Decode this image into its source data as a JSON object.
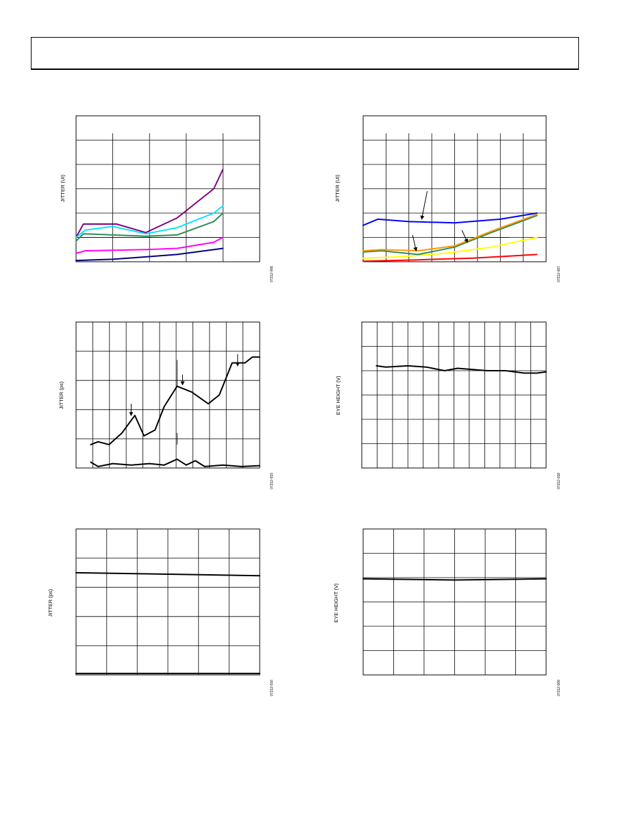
{
  "charts": [
    {
      "id": "c1",
      "type": "line",
      "ylabel": "JITTER (UI)",
      "figure_id": "07212-006",
      "xlim": [
        0,
        1
      ],
      "ylim": [
        0,
        6
      ],
      "v_ticks": [
        0.2,
        0.4,
        0.6,
        0.8
      ],
      "h_ticks": [
        1,
        2,
        3,
        4,
        5
      ],
      "series": [
        {
          "color": "#800080",
          "values": [
            [
              0,
              1.0
            ],
            [
              0.04,
              1.55
            ],
            [
              0.12,
              1.55
            ],
            [
              0.22,
              1.55
            ],
            [
              0.38,
              1.2
            ],
            [
              0.55,
              1.8
            ],
            [
              0.75,
              3.0
            ],
            [
              0.8,
              3.8
            ]
          ]
        },
        {
          "color": "#00e5ff",
          "values": [
            [
              0,
              1.0
            ],
            [
              0.05,
              1.3
            ],
            [
              0.2,
              1.45
            ],
            [
              0.38,
              1.15
            ],
            [
              0.55,
              1.4
            ],
            [
              0.75,
              2.0
            ],
            [
              0.8,
              2.3
            ]
          ]
        },
        {
          "color": "#2e8b57",
          "values": [
            [
              0,
              0.85
            ],
            [
              0.04,
              1.15
            ],
            [
              0.2,
              1.1
            ],
            [
              0.38,
              1.05
            ],
            [
              0.55,
              1.1
            ],
            [
              0.75,
              1.65
            ],
            [
              0.8,
              2.0
            ]
          ]
        },
        {
          "color": "#ff00ff",
          "values": [
            [
              0,
              0.35
            ],
            [
              0.05,
              0.45
            ],
            [
              0.38,
              0.5
            ],
            [
              0.55,
              0.55
            ],
            [
              0.75,
              0.8
            ],
            [
              0.8,
              1.0
            ]
          ]
        },
        {
          "color": "#000080",
          "values": [
            [
              0,
              0.05
            ],
            [
              0.2,
              0.1
            ],
            [
              0.38,
              0.2
            ],
            [
              0.55,
              0.3
            ],
            [
              0.8,
              0.55
            ]
          ]
        }
      ],
      "h_partial": [
        {
          "y": 1.0,
          "x0": 0.0,
          "x1": 0.8
        }
      ]
    },
    {
      "id": "c2",
      "type": "line",
      "ylabel": "JITTER (UI)",
      "figure_id": "07212-007",
      "xlim": [
        0,
        1
      ],
      "ylim": [
        0,
        6
      ],
      "v_ticks": [
        0.125,
        0.25,
        0.375,
        0.5,
        0.625,
        0.75,
        0.875
      ],
      "h_ticks": [
        1,
        2,
        3,
        4,
        5
      ],
      "series": [
        {
          "color": "#0000ff",
          "values": [
            [
              0,
              1.5
            ],
            [
              0.08,
              1.75
            ],
            [
              0.25,
              1.65
            ],
            [
              0.5,
              1.6
            ],
            [
              0.75,
              1.75
            ],
            [
              0.95,
              2.0
            ]
          ]
        },
        {
          "color": "#ffff00",
          "values": [
            [
              0,
              0.15
            ],
            [
              0.2,
              0.2
            ],
            [
              0.45,
              0.35
            ],
            [
              0.7,
              0.6
            ],
            [
              0.95,
              1.0
            ]
          ]
        },
        {
          "color": "#ff0000",
          "values": [
            [
              0,
              0.02
            ],
            [
              0.3,
              0.08
            ],
            [
              0.6,
              0.15
            ],
            [
              0.95,
              0.3
            ]
          ]
        },
        {
          "color": "#2e8b57",
          "values": [
            [
              0,
              0.4
            ],
            [
              0.1,
              0.45
            ],
            [
              0.3,
              0.3
            ],
            [
              0.5,
              0.6
            ],
            [
              0.7,
              1.2
            ],
            [
              0.95,
              1.9
            ]
          ]
        },
        {
          "color": "#ff9900",
          "values": [
            [
              0,
              0.45
            ],
            [
              0.1,
              0.5
            ],
            [
              0.3,
              0.45
            ],
            [
              0.5,
              0.65
            ],
            [
              0.7,
              1.25
            ],
            [
              0.95,
              1.95
            ]
          ]
        }
      ],
      "h_partial": [
        {
          "y": 1.0,
          "x0": 0.375,
          "x1": 0.8
        }
      ],
      "arrows": [
        {
          "x1": 0.35,
          "y1": 2.9,
          "x2": 0.32,
          "y2": 1.75
        },
        {
          "x1": 0.27,
          "y1": 1.1,
          "x2": 0.29,
          "y2": 0.45
        },
        {
          "x1": 0.54,
          "y1": 1.3,
          "x2": 0.57,
          "y2": 0.8
        }
      ]
    },
    {
      "id": "c3",
      "type": "line",
      "ylabel": "JITTER (ps)",
      "figure_id": "07212-015",
      "xlim": [
        0,
        1
      ],
      "ylim": [
        0,
        5
      ],
      "v_ticks": [
        0.091,
        0.182,
        0.273,
        0.364,
        0.455,
        0.545,
        0.636,
        0.727,
        0.818,
        0.909
      ],
      "h_ticks": [
        1,
        2,
        3,
        4
      ],
      "series": [
        {
          "color": "#000000",
          "values": [
            [
              0.08,
              0.8
            ],
            [
              0.12,
              0.9
            ],
            [
              0.18,
              0.8
            ],
            [
              0.25,
              1.2
            ],
            [
              0.32,
              1.8
            ],
            [
              0.37,
              1.1
            ],
            [
              0.43,
              1.3
            ],
            [
              0.48,
              2.1
            ],
            [
              0.55,
              2.8
            ],
            [
              0.63,
              2.6
            ],
            [
              0.72,
              2.2
            ],
            [
              0.78,
              2.5
            ],
            [
              0.85,
              3.6
            ],
            [
              0.92,
              3.6
            ],
            [
              0.96,
              3.8
            ],
            [
              1.0,
              3.8
            ]
          ]
        },
        {
          "color": "#000000",
          "values": [
            [
              0.08,
              0.2
            ],
            [
              0.12,
              0.05
            ],
            [
              0.2,
              0.15
            ],
            [
              0.3,
              0.1
            ],
            [
              0.4,
              0.15
            ],
            [
              0.48,
              0.1
            ],
            [
              0.55,
              0.3
            ],
            [
              0.6,
              0.1
            ],
            [
              0.65,
              0.25
            ],
            [
              0.7,
              0.05
            ],
            [
              0.8,
              0.1
            ],
            [
              0.9,
              0.05
            ],
            [
              1.0,
              0.08
            ]
          ]
        }
      ],
      "arrows": [
        {
          "x1": 0.3,
          "y1": 2.2,
          "x2": 0.3,
          "y2": 1.8
        },
        {
          "x1": 0.58,
          "y1": 3.2,
          "x2": 0.58,
          "y2": 2.85
        },
        {
          "x1": 0.88,
          "y1": 3.9,
          "x2": 0.88,
          "y2": 3.5
        }
      ],
      "v_partial": [
        {
          "x": 0.55,
          "y0": 2.8,
          "y1": 3.7
        },
        {
          "x": 0.55,
          "y0": 0.8,
          "y1": 1.2
        }
      ]
    },
    {
      "id": "c4",
      "type": "line",
      "ylabel": "EYE HEIGHT (V)",
      "figure_id": "07212-018",
      "xlim": [
        0,
        1
      ],
      "ylim": [
        0,
        6
      ],
      "v_ticks": [
        0.083,
        0.167,
        0.25,
        0.333,
        0.417,
        0.5,
        0.583,
        0.667,
        0.75,
        0.833,
        0.917
      ],
      "h_ticks": [
        1,
        2,
        3,
        4,
        5
      ],
      "series": [
        {
          "color": "#000000",
          "values": [
            [
              0.08,
              4.2
            ],
            [
              0.13,
              4.15
            ],
            [
              0.25,
              4.2
            ],
            [
              0.35,
              4.15
            ],
            [
              0.45,
              4.0
            ],
            [
              0.52,
              4.1
            ],
            [
              0.6,
              4.05
            ],
            [
              0.68,
              4.0
            ],
            [
              0.78,
              4.0
            ],
            [
              0.88,
              3.9
            ],
            [
              0.95,
              3.9
            ],
            [
              1.0,
              3.95
            ]
          ]
        }
      ]
    },
    {
      "id": "c5",
      "type": "line",
      "ylabel": "JITTER (ps)",
      "figure_id": "07212-016",
      "xlim": [
        0,
        1
      ],
      "ylim": [
        0,
        5
      ],
      "v_ticks": [
        0.167,
        0.333,
        0.5,
        0.667,
        0.833
      ],
      "h_ticks": [
        1,
        2,
        3,
        4
      ],
      "series": [
        {
          "color": "#000000",
          "values": [
            [
              0,
              3.5
            ],
            [
              0.5,
              3.45
            ],
            [
              1.0,
              3.4
            ]
          ]
        },
        {
          "color": "#000000",
          "values": [
            [
              0,
              0.05
            ],
            [
              1.0,
              0.05
            ]
          ]
        }
      ]
    },
    {
      "id": "c6",
      "type": "line",
      "ylabel": "EYE HEIGHT (V)",
      "figure_id": "07212-009",
      "xlim": [
        0,
        1
      ],
      "ylim": [
        0,
        6
      ],
      "v_ticks": [
        0.167,
        0.333,
        0.5,
        0.667,
        0.833
      ],
      "h_ticks": [
        1,
        2,
        3,
        4,
        5
      ],
      "series": [
        {
          "color": "#000000",
          "values": [
            [
              0,
              3.95
            ],
            [
              0.5,
              3.9
            ],
            [
              1.0,
              3.95
            ]
          ]
        }
      ]
    }
  ]
}
